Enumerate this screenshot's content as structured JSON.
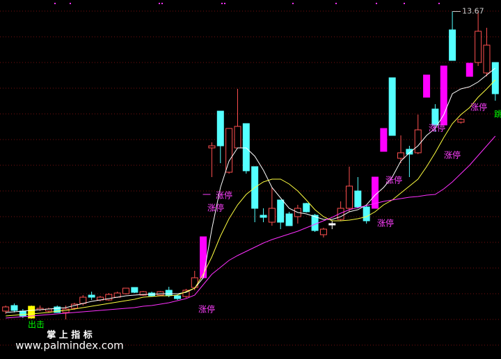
{
  "chart_data": {
    "type": "candlestick",
    "ylim": [
      4,
      14
    ],
    "high_marker": 13.67,
    "up_color": "#ff5050",
    "candle_colors": [
      "#ff5050",
      "#54ffff",
      "#54ffff",
      "#ffff00",
      "#ff5050",
      "#ff5050",
      "#54ffff",
      "#ff5050",
      "#ff5050",
      "#ff5050",
      "#54ffff",
      "#ff5050",
      "#ff5050",
      "#ff5050",
      "#ff5050",
      "#54ffff",
      "#ff5050",
      "#54ffff",
      "#ff5050",
      "#54ffff",
      "#54ffff",
      "#ff5050",
      "#ff5050",
      "#ff00ff",
      "#ff5050",
      "#54ffff",
      "#ff5050",
      "#ff5050",
      "#54ffff",
      "#54ffff",
      "#54ffff",
      "#ff5050",
      "#54ffff",
      "#54ffff",
      "#ff5050",
      "#54ffff",
      "#54ffff",
      "#ff5050",
      "#ffffff",
      "#ff5050",
      "#ff5050",
      "#54ffff",
      "#54ffff",
      "#ff00ff",
      "#ff00ff",
      "#54ffff",
      "#ff5050",
      "#54ffff",
      "#ff5050",
      "#ff00ff",
      "#54ffff",
      "#ff00ff",
      "#54ffff",
      "#ff5050",
      "#ff00ff",
      "#ff5050",
      "#ff5050",
      "#54ffff"
    ],
    "open": [
      5.04,
      5.2,
      5.04,
      4.84,
      5.08,
      5.04,
      5.16,
      5.0,
      5.12,
      5.26,
      5.5,
      5.36,
      5.36,
      5.44,
      5.54,
      5.72,
      5.5,
      5.56,
      5.5,
      5.64,
      5.48,
      5.46,
      5.72,
      6.0,
      9.74,
      10.8,
      9.04,
      9.74,
      10.44,
      9.2,
      7.8,
      7.6,
      8.24,
      7.84,
      7.76,
      8.14,
      7.8,
      7.24,
      7.56,
      7.68,
      8.0,
      8.5,
      8.04,
      8.0,
      9.64,
      11.76,
      9.44,
      9.7,
      9.6,
      11.2,
      10.86,
      10.4,
      13.14,
      10.48,
      11.8,
      12.2,
      11.9,
      12.2
    ],
    "high": [
      5.2,
      5.26,
      5.1,
      5.2,
      5.2,
      5.14,
      5.2,
      5.2,
      5.28,
      5.5,
      5.6,
      5.48,
      5.56,
      5.6,
      5.7,
      5.72,
      5.62,
      5.6,
      5.62,
      5.74,
      5.52,
      5.68,
      6.2,
      7.18,
      9.9,
      10.8,
      10.3,
      11.44,
      10.44,
      9.2,
      8.0,
      8.6,
      8.24,
      7.9,
      8.1,
      8.16,
      7.84,
      7.44,
      7.64,
      8.2,
      9.2,
      8.9,
      8.08,
      8.9,
      10.3,
      11.76,
      10.1,
      9.8,
      10.7,
      11.84,
      11.0,
      12.1,
      13.67,
      10.6,
      12.18,
      13.64,
      13.2,
      12.2
    ],
    "low": [
      4.96,
      5.0,
      4.84,
      4.82,
      5.04,
      5.0,
      5.0,
      4.8,
      5.08,
      5.2,
      5.36,
      5.32,
      5.34,
      5.42,
      5.52,
      5.56,
      5.48,
      5.46,
      5.48,
      5.44,
      5.36,
      5.42,
      5.64,
      6.0,
      8.9,
      9.3,
      9.0,
      9.74,
      9.0,
      7.6,
      7.6,
      7.5,
      7.4,
      7.5,
      7.56,
      7.88,
      7.32,
      7.16,
      7.4,
      7.64,
      7.9,
      8.0,
      7.56,
      8.0,
      9.64,
      10.1,
      9.3,
      8.9,
      9.56,
      11.2,
      10.2,
      10.4,
      12.26,
      10.44,
      11.8,
      12.1,
      11.8,
      11.1
    ],
    "close": [
      5.16,
      5.06,
      4.9,
      5.18,
      5.12,
      5.1,
      5.0,
      5.1,
      5.24,
      5.44,
      5.44,
      5.44,
      5.52,
      5.56,
      5.7,
      5.58,
      5.6,
      5.48,
      5.6,
      5.5,
      5.4,
      5.64,
      6.0,
      7.18,
      9.8,
      9.8,
      10.3,
      10.36,
      9.08,
      8.0,
      7.74,
      8.0,
      7.6,
      7.5,
      8.0,
      7.9,
      7.36,
      7.4,
      7.52,
      8.0,
      8.64,
      8.04,
      7.64,
      8.9,
      10.3,
      10.1,
      9.6,
      9.56,
      10.26,
      11.84,
      10.4,
      12.1,
      12.26,
      10.56,
      12.18,
      13.1,
      12.7,
      11.3
    ],
    "lines": [
      {
        "color": "#ffffff",
        "values": [
          5.0,
          5.02,
          5.04,
          5.06,
          5.08,
          5.1,
          5.12,
          5.14,
          5.2,
          5.26,
          5.32,
          5.36,
          5.4,
          5.44,
          5.48,
          5.5,
          5.52,
          5.52,
          5.54,
          5.54,
          5.54,
          5.58,
          5.7,
          6.0,
          7.4,
          8.6,
          9.36,
          9.74,
          9.74,
          9.5,
          9.1,
          8.6,
          8.3,
          8.0,
          7.88,
          7.84,
          7.76,
          7.68,
          7.68,
          7.76,
          7.9,
          7.96,
          8.1,
          8.38,
          8.6,
          8.9,
          9.36,
          9.6,
          9.8,
          10.1,
          10.3,
          10.7,
          11.3,
          11.44,
          11.5,
          11.64,
          11.84,
          12.04
        ]
      },
      {
        "color": "#ffff40",
        "values": [
          4.9,
          4.92,
          4.94,
          4.96,
          4.98,
          5.0,
          5.04,
          5.06,
          5.1,
          5.14,
          5.18,
          5.22,
          5.26,
          5.3,
          5.34,
          5.38,
          5.44,
          5.46,
          5.48,
          5.48,
          5.5,
          5.6,
          5.7,
          6.1,
          6.6,
          7.2,
          7.7,
          8.1,
          8.4,
          8.6,
          8.76,
          8.84,
          8.84,
          8.7,
          8.5,
          8.24,
          7.96,
          7.76,
          7.64,
          7.64,
          7.66,
          7.7,
          7.76,
          7.9,
          8.1,
          8.24,
          8.44,
          8.64,
          8.84,
          9.2,
          9.6,
          10.04,
          10.44,
          10.7,
          10.9,
          11.2,
          11.44,
          11.7
        ]
      },
      {
        "color": "#ff30ff",
        "values": [
          4.84,
          4.86,
          4.88,
          4.9,
          4.92,
          4.94,
          4.96,
          4.98,
          5.0,
          5.02,
          5.04,
          5.06,
          5.08,
          5.1,
          5.12,
          5.14,
          5.18,
          5.2,
          5.24,
          5.28,
          5.34,
          5.4,
          5.5,
          5.8,
          6.1,
          6.3,
          6.5,
          6.64,
          6.76,
          6.88,
          7.0,
          7.1,
          7.18,
          7.26,
          7.34,
          7.44,
          7.54,
          7.64,
          7.74,
          7.86,
          7.96,
          8.02,
          8.08,
          8.14,
          8.2,
          8.24,
          8.28,
          8.32,
          8.34,
          8.38,
          8.4,
          8.56,
          8.76,
          9.0,
          9.24,
          9.52,
          9.8,
          10.08
        ]
      }
    ],
    "annotations": [
      "一",
      "涨停",
      "涨停",
      "涨停",
      "涨停",
      "涨停",
      "涨停",
      "涨停",
      "涨停",
      "出击",
      "跳"
    ]
  },
  "footer": {
    "brand": "掌 上 指 标",
    "url": "www.palmindex.com"
  }
}
